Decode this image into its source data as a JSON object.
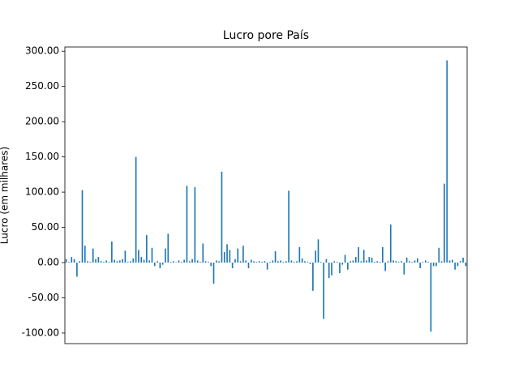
{
  "chart_data": {
    "type": "bar",
    "title": "Lucro pore País",
    "ylabel": "Lucro (em milhares)",
    "categories": [
      null,
      null,
      null,
      null,
      null,
      null,
      null,
      null,
      null,
      null,
      null,
      null,
      null,
      null,
      null,
      null,
      null,
      null,
      null,
      null,
      null,
      null,
      null,
      null,
      null,
      null,
      null,
      null,
      null,
      null,
      null,
      null,
      null,
      null,
      null,
      null,
      null,
      null,
      null,
      null,
      null,
      null,
      null,
      null,
      null,
      null,
      null,
      null,
      null,
      null,
      null,
      null,
      null,
      null,
      null,
      null,
      null,
      null,
      null,
      null,
      null,
      null,
      null,
      null,
      null,
      null,
      null,
      null,
      null,
      null,
      null,
      null,
      null,
      null,
      null,
      null,
      null,
      null,
      null,
      null,
      null,
      null,
      null,
      null,
      null,
      null,
      null,
      null,
      null,
      null,
      null,
      null,
      null,
      null,
      null,
      null,
      null,
      null,
      null,
      null,
      null,
      null,
      null,
      null,
      null,
      null,
      null,
      null,
      null,
      null,
      null,
      null,
      null,
      null,
      null,
      null,
      null,
      null,
      null,
      null,
      null,
      null,
      null,
      null,
      null,
      null,
      null,
      null,
      null,
      null,
      null,
      null,
      null,
      null,
      null,
      null,
      null,
      null,
      null,
      null,
      null,
      null,
      null,
      null,
      null,
      null,
      null,
      null,
      null,
      null
    ],
    "values": [
      5,
      1,
      8,
      5,
      -20,
      2,
      103,
      24,
      2,
      1,
      20,
      5,
      8,
      2,
      1,
      3,
      1,
      30,
      4,
      2,
      3,
      5,
      17,
      1,
      2,
      6,
      150,
      18,
      8,
      4,
      39,
      3,
      21,
      -5,
      2,
      -8,
      -3,
      20,
      41,
      1,
      2,
      0.5,
      3,
      1,
      4,
      109,
      2,
      5,
      107,
      3,
      1,
      27,
      2,
      1,
      -5,
      -30,
      3,
      2,
      129,
      15,
      26,
      18,
      -8,
      5,
      20,
      2,
      24,
      3,
      -8,
      4,
      2,
      1,
      2,
      1,
      2,
      -10,
      1,
      3,
      16,
      2,
      3,
      1,
      2,
      102,
      3,
      1,
      2,
      22,
      6,
      2,
      1,
      -2,
      -40,
      17,
      33,
      1,
      -80,
      5,
      -22,
      -18,
      2,
      1,
      -15,
      -3,
      11,
      -10,
      2,
      3,
      8,
      22,
      2,
      18,
      3,
      8,
      7,
      1,
      2,
      1,
      22,
      -12,
      2,
      54,
      3,
      2,
      1,
      2,
      -17,
      7,
      2,
      1,
      3,
      6,
      -8,
      1,
      3,
      1,
      -98,
      -5,
      -5,
      21,
      2,
      112,
      287,
      3,
      4,
      -10,
      -5,
      2,
      7,
      -5
    ],
    "color": "#1f77b4",
    "ylim": [
      -115,
      306
    ],
    "yticks": [
      {
        "value": -100,
        "label": "-100.00"
      },
      {
        "value": -50,
        "label": "-50.00"
      },
      {
        "value": 0,
        "label": "0.00"
      },
      {
        "value": 50,
        "label": "50.00"
      },
      {
        "value": 100,
        "label": "100.00"
      },
      {
        "value": 150,
        "label": "150.00"
      },
      {
        "value": 200,
        "label": "200.00"
      },
      {
        "value": 250,
        "label": "250.00"
      },
      {
        "value": 300,
        "label": "300.00"
      }
    ],
    "grid": false
  }
}
